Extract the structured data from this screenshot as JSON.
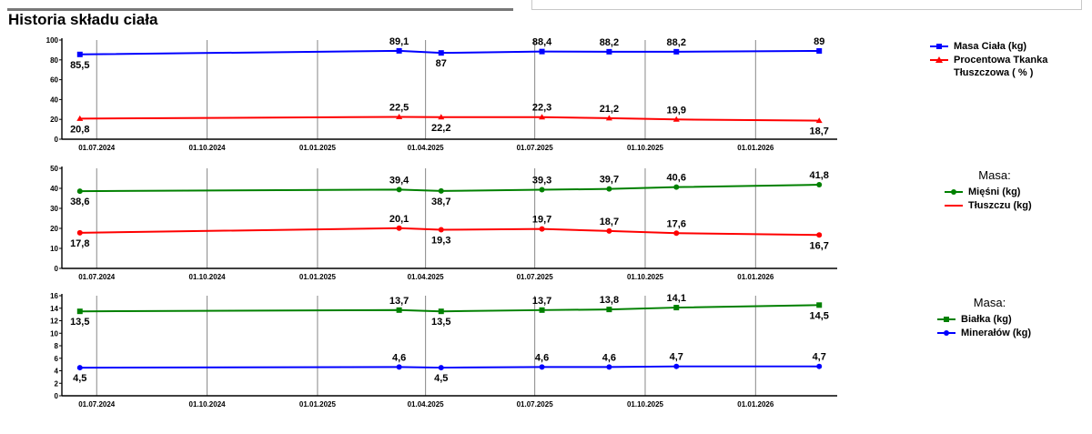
{
  "page": {
    "title": "Historia składu ciała"
  },
  "x_axis": {
    "tick_dates": [
      "2024-07-01",
      "2024-10-01",
      "2025-01-01",
      "2025-04-01",
      "2025-07-01",
      "2025-10-01",
      "2026-01-01"
    ],
    "tick_labels": [
      "01.07.2024",
      "01.10.2024",
      "01.01.2025",
      "01.04.2025",
      "01.07.2025",
      "01.10.2025",
      "01.01.2026"
    ],
    "range": [
      "2024-06-02",
      "2026-03-10"
    ]
  },
  "legends": [
    {
      "heading": "",
      "items": [
        {
          "label": "Masa Ciała (kg)",
          "color": "#0000ff",
          "marker": "square"
        },
        {
          "label": "Procentowa Tkanka Tłuszczowa ( % )",
          "color": "#ff0000",
          "marker": "triangle"
        }
      ]
    },
    {
      "heading": "Masa:",
      "items": [
        {
          "label": "Mięśni (kg)",
          "color": "#008000",
          "marker": "circle"
        },
        {
          "label": "Tłuszczu (kg)",
          "color": "#ff0000",
          "marker": "none"
        }
      ]
    },
    {
      "heading": "Masa:",
      "items": [
        {
          "label": "Białka (kg)",
          "color": "#008000",
          "marker": "square"
        },
        {
          "label": "Minerałów (kg)",
          "color": "#0000ff",
          "marker": "circle"
        }
      ]
    }
  ],
  "chart_data": [
    {
      "type": "line",
      "ylim": [
        0,
        100
      ],
      "y_ticks": [
        0,
        20,
        40,
        60,
        80,
        100
      ],
      "x": [
        "2024-06-17",
        "2025-03-10",
        "2025-04-14",
        "2025-07-07",
        "2025-09-01",
        "2025-10-27",
        "2026-02-23"
      ],
      "series": [
        {
          "name": "Masa Ciała (kg)",
          "color": "#0000ff",
          "marker": "square",
          "values": [
            85.5,
            89.1,
            87,
            88.4,
            88.2,
            88.2,
            89
          ],
          "labels": [
            "85,5",
            "89,1",
            "87",
            "88,4",
            "88,2",
            "88,2",
            "89"
          ]
        },
        {
          "name": "Procentowa Tkanka Tłuszczowa ( % )",
          "color": "#ff0000",
          "marker": "triangle",
          "values": [
            20.8,
            22.5,
            22.2,
            22.3,
            21.2,
            19.9,
            18.7
          ],
          "labels": [
            "20,8",
            "22,5",
            "22,2",
            "22,3",
            "21,2",
            "19,9",
            "18,7"
          ]
        }
      ]
    },
    {
      "type": "line",
      "ylim": [
        0,
        50
      ],
      "y_ticks": [
        0,
        10,
        20,
        30,
        40,
        50
      ],
      "x": [
        "2024-06-17",
        "2025-03-10",
        "2025-04-14",
        "2025-07-07",
        "2025-09-01",
        "2025-10-27",
        "2026-02-23"
      ],
      "series": [
        {
          "name": "Mięśni (kg)",
          "color": "#008000",
          "marker": "circle",
          "values": [
            38.6,
            39.4,
            38.7,
            39.3,
            39.7,
            40.6,
            41.8
          ],
          "labels": [
            "38,6",
            "39,4",
            "38,7",
            "39,3",
            "39,7",
            "40,6",
            "41,8"
          ]
        },
        {
          "name": "Tłuszczu (kg)",
          "color": "#ff0000",
          "marker": "circle",
          "values": [
            17.8,
            20.1,
            19.3,
            19.7,
            18.7,
            17.6,
            16.7
          ],
          "labels": [
            "17,8",
            "20,1",
            "19,3",
            "19,7",
            "18,7",
            "17,6",
            "16,7"
          ]
        }
      ]
    },
    {
      "type": "line",
      "ylim": [
        0,
        16
      ],
      "y_ticks": [
        0,
        2,
        4,
        6,
        8,
        10,
        12,
        14,
        16
      ],
      "x": [
        "2024-06-17",
        "2025-03-10",
        "2025-04-14",
        "2025-07-07",
        "2025-09-01",
        "2025-10-27",
        "2026-02-23"
      ],
      "series": [
        {
          "name": "Białka (kg)",
          "color": "#008000",
          "marker": "square",
          "values": [
            13.5,
            13.7,
            13.5,
            13.7,
            13.8,
            14.1,
            14.5
          ],
          "labels": [
            "13,5",
            "13,7",
            "13,5",
            "13,7",
            "13,8",
            "14,1",
            "14,5"
          ]
        },
        {
          "name": "Minerałów (kg)",
          "color": "#0000ff",
          "marker": "circle",
          "values": [
            4.5,
            4.6,
            4.5,
            4.6,
            4.6,
            4.7,
            4.7
          ],
          "labels": [
            "4,5",
            "4,6",
            "4,5",
            "4,6",
            "4,6",
            "4,7",
            "4,7"
          ]
        }
      ]
    }
  ]
}
